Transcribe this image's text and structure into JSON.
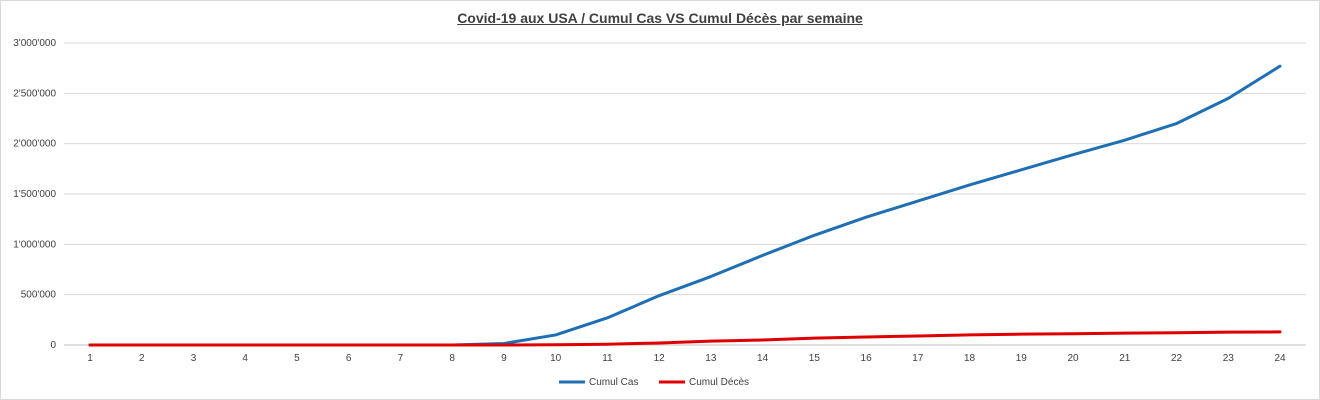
{
  "chart_data": {
    "type": "line",
    "title": "Covid-19 aux USA / Cumul Cas VS Cumul Décès par semaine",
    "xlabel": "",
    "ylabel": "",
    "categories": [
      "1",
      "2",
      "3",
      "4",
      "5",
      "6",
      "7",
      "8",
      "9",
      "10",
      "11",
      "12",
      "13",
      "14",
      "15",
      "16",
      "17",
      "18",
      "19",
      "20",
      "21",
      "22",
      "23",
      "24"
    ],
    "ylim": [
      0,
      3000000
    ],
    "yticks": [
      0,
      500000,
      1000000,
      1500000,
      2000000,
      2500000,
      3000000
    ],
    "ytick_labels": [
      "0",
      "500'000",
      "1'000'000",
      "1'500'000",
      "2'000'000",
      "2'500'000",
      "3'000'000"
    ],
    "grid": true,
    "legend_position": "bottom",
    "series": [
      {
        "name": "Cumul Cas",
        "color": "#1f6fb5",
        "values": [
          0,
          0,
          0,
          0,
          0,
          0,
          0,
          500,
          15000,
          100000,
          270000,
          490000,
          680000,
          890000,
          1090000,
          1270000,
          1430000,
          1590000,
          1740000,
          1890000,
          2035000,
          2200000,
          2450000,
          2770000
        ]
      },
      {
        "name": "Cumul Décès",
        "color": "#e00000",
        "values": [
          0,
          0,
          0,
          0,
          0,
          0,
          0,
          0,
          300,
          2000,
          8000,
          20000,
          38000,
          50000,
          68000,
          80000,
          90000,
          100000,
          108000,
          112000,
          118000,
          122000,
          128000,
          130000
        ]
      }
    ]
  }
}
